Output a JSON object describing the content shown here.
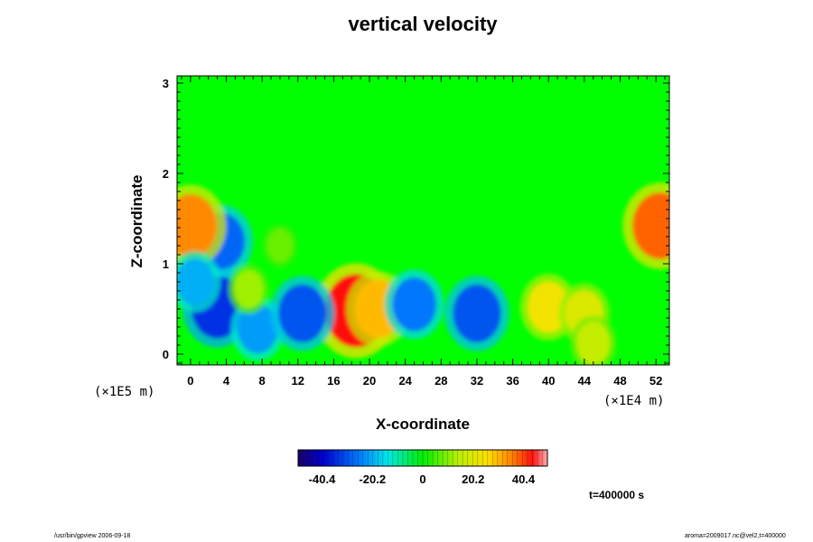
{
  "chart_data": {
    "type": "heatmap",
    "title": "vertical velocity",
    "xlabel": "X-coordinate",
    "ylabel": "Z-coordinate",
    "x_scale_label": "(×1E4 m)",
    "y_scale_label": "(×1E5 m)",
    "xlim": [
      -1.5,
      53.5
    ],
    "ylim": [
      -0.12,
      3.08
    ],
    "x_ticks": [
      0,
      4,
      8,
      12,
      16,
      20,
      24,
      28,
      32,
      36,
      40,
      44,
      48,
      52
    ],
    "y_ticks": [
      0,
      1,
      2,
      3
    ],
    "colorbar": {
      "ticks": [
        -40.4,
        -20.2,
        0,
        20.2,
        40.4
      ],
      "tick_labels": [
        "-40.4",
        "-20.2",
        "0",
        "20.2",
        "40.4"
      ],
      "range": [
        -50,
        50
      ]
    },
    "features": [
      {
        "x": 18.5,
        "z": 0.48,
        "value": 44
      },
      {
        "x": 21,
        "z": 0.5,
        "value": 30
      },
      {
        "x": 3,
        "z": 0.52,
        "value": -34
      },
      {
        "x": 3.5,
        "z": 1.25,
        "value": -28
      },
      {
        "x": 7.5,
        "z": 0.28,
        "value": -22
      },
      {
        "x": 12.5,
        "z": 0.45,
        "value": -30
      },
      {
        "x": 25,
        "z": 0.55,
        "value": -26
      },
      {
        "x": 32,
        "z": 0.45,
        "value": -30
      },
      {
        "x": 0,
        "z": 1.42,
        "value": 35
      },
      {
        "x": 52.5,
        "z": 1.42,
        "value": 38
      },
      {
        "x": 40,
        "z": 0.52,
        "value": 24
      },
      {
        "x": 44,
        "z": 0.45,
        "value": 20
      },
      {
        "x": 45,
        "z": 0.12,
        "value": 16
      },
      {
        "x": 6.5,
        "z": 0.72,
        "value": 12
      },
      {
        "x": 10,
        "z": 1.2,
        "value": 8
      },
      {
        "x": 0.5,
        "z": 0.8,
        "value": -20
      }
    ],
    "background_value": 0
  },
  "annotation": {
    "time": "t=400000 s"
  },
  "footer": {
    "left": "/usr/bin/gpview 2006-09-18",
    "right": "aroma=2009017.nc@vel2,t=400000"
  }
}
